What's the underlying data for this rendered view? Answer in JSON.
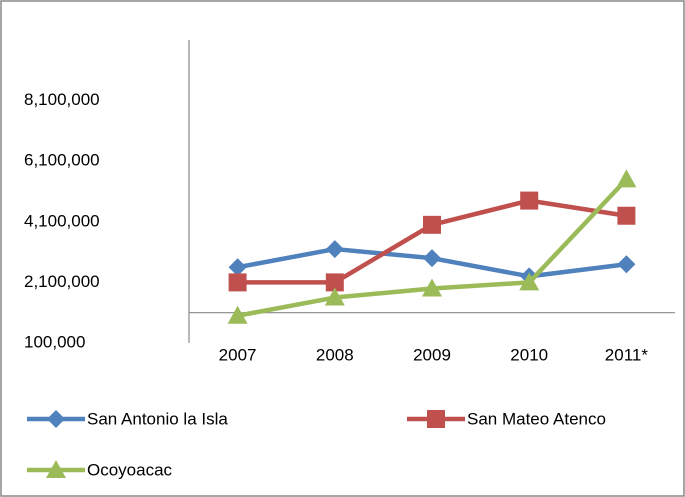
{
  "chart_data": {
    "type": "line",
    "categories": [
      "2007",
      "2008",
      "2009",
      "2010",
      "2011*"
    ],
    "series": [
      {
        "name": "San Antonio la Isla",
        "color": "#4f81bd",
        "marker": "diamond",
        "values": [
          2600000,
          3200000,
          2900000,
          2300000,
          2700000
        ]
      },
      {
        "name": "San Mateo Atenco",
        "color": "#c0504d",
        "marker": "square",
        "values": [
          2100000,
          2100000,
          4000000,
          4800000,
          4300000
        ]
      },
      {
        "name": "Ocoyoacac",
        "color": "#9bbb59",
        "marker": "triangle",
        "values": [
          1000000,
          1600000,
          1900000,
          2100000,
          5500000
        ]
      }
    ],
    "ylim": [
      100000,
      10100000
    ],
    "yticks": [
      {
        "value": 100000,
        "label": "100,000"
      },
      {
        "value": 2100000,
        "label": "2,100,000"
      },
      {
        "value": 4100000,
        "label": "4,100,000"
      },
      {
        "value": 6100000,
        "label": "6,100,000"
      },
      {
        "value": 8100000,
        "label": "8,100,000"
      }
    ],
    "x_axis_crosses": 1100000,
    "grid": false,
    "legend": "bottom"
  }
}
